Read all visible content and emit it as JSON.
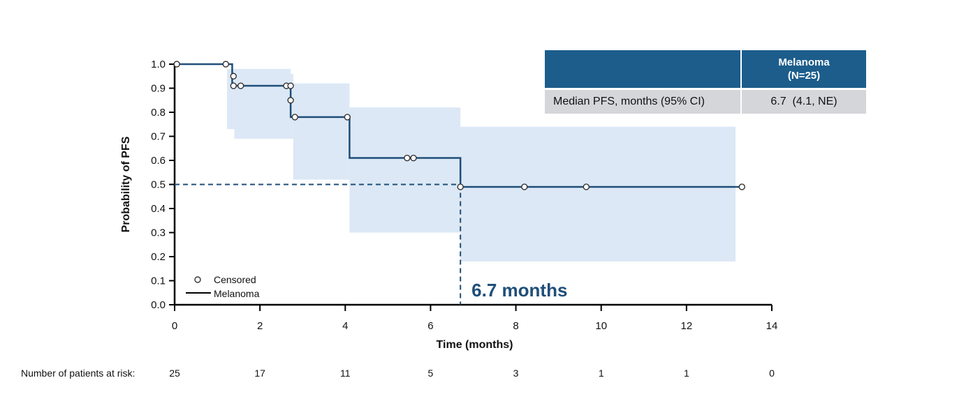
{
  "chart_data": {
    "type": "line",
    "subtype": "kaplan-meier",
    "xlabel": "Time (months)",
    "ylabel": "Probability of PFS",
    "xlim": [
      0,
      14
    ],
    "ylim": [
      0,
      1
    ],
    "x_ticks": [
      "0",
      "2",
      "4",
      "6",
      "8",
      "10",
      "12",
      "14"
    ],
    "y_ticks": [
      "0.0",
      "0.1",
      "0.2",
      "0.3",
      "0.4",
      "0.5",
      "0.6",
      "0.7",
      "0.8",
      "0.9",
      "1.0"
    ],
    "series": [
      {
        "name": "Melanoma",
        "step_x": [
          0,
          1.2,
          1.35,
          1.35,
          2.65,
          2.72,
          2.72,
          4.1,
          4.1,
          6.7,
          6.7,
          13.3
        ],
        "step_y": [
          1.0,
          1.0,
          1.0,
          0.91,
          0.91,
          0.91,
          0.78,
          0.78,
          0.61,
          0.61,
          0.49,
          0.49
        ],
        "censored": [
          {
            "x": 0.05,
            "y": 1.0
          },
          {
            "x": 1.2,
            "y": 1.0
          },
          {
            "x": 1.38,
            "y": 0.95
          },
          {
            "x": 1.38,
            "y": 0.91
          },
          {
            "x": 1.55,
            "y": 0.91
          },
          {
            "x": 2.62,
            "y": 0.91
          },
          {
            "x": 2.72,
            "y": 0.91
          },
          {
            "x": 2.72,
            "y": 0.85
          },
          {
            "x": 2.82,
            "y": 0.78
          },
          {
            "x": 4.05,
            "y": 0.78
          },
          {
            "x": 5.45,
            "y": 0.61
          },
          {
            "x": 5.6,
            "y": 0.61
          },
          {
            "x": 6.7,
            "y": 0.49
          },
          {
            "x": 8.2,
            "y": 0.49
          },
          {
            "x": 9.65,
            "y": 0.49
          },
          {
            "x": 13.3,
            "y": 0.49
          }
        ],
        "ci_band": [
          {
            "x0": 1.23,
            "x1": 2.68,
            "lo": 0.73,
            "hi": 0.98
          },
          {
            "x0": 1.4,
            "x1": 2.72,
            "lo": 0.69,
            "hi": 0.98
          },
          {
            "x0": 2.72,
            "x1": 2.78,
            "lo": 0.69,
            "hi": 0.96
          },
          {
            "x0": 2.78,
            "x1": 4.05,
            "lo": 0.52,
            "hi": 0.92
          },
          {
            "x0": 4.05,
            "x1": 4.1,
            "lo": 0.52,
            "hi": 0.92
          },
          {
            "x0": 4.1,
            "x1": 6.7,
            "lo": 0.3,
            "hi": 0.82
          },
          {
            "x0": 6.7,
            "x1": 13.15,
            "lo": 0.18,
            "hi": 0.74
          }
        ]
      }
    ],
    "median": {
      "x": 6.7,
      "y": 0.5,
      "label": "6.7 months"
    },
    "legend": [
      {
        "label": "Censored",
        "marker": "circle-open"
      },
      {
        "label": "Melanoma",
        "marker": "line"
      }
    ],
    "risk_table": {
      "label": "Number of patients at risk:",
      "times": [
        0,
        2,
        4,
        6,
        8,
        10,
        12,
        14
      ],
      "counts": [
        "25",
        "17",
        "11",
        "5",
        "3",
        "1",
        "1",
        "0"
      ]
    },
    "colors": {
      "line": "#1f4e79",
      "band": "#dce8f5",
      "header": "#1c5d8c",
      "cell": "#d4d6d9"
    }
  },
  "summary_table": {
    "header_line1": "Melanoma",
    "header_line2": "(N=25)",
    "row_label": "Median PFS, months (95% CI)",
    "row_value": "6.7  (4.1, NE)"
  }
}
